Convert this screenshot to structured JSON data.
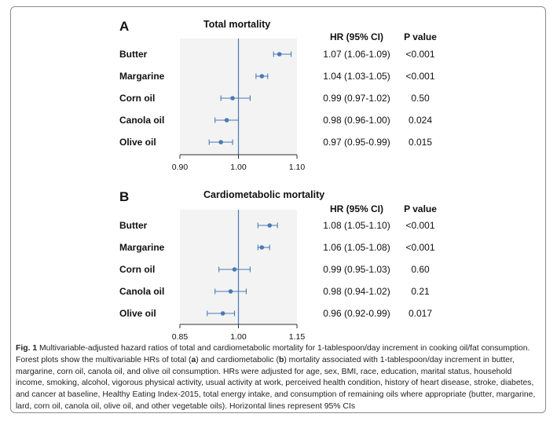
{
  "colors": {
    "point": "#4a7ab5",
    "ref_line": "#4a7ab5",
    "panel_bg": "#f3f3f3",
    "axis": "#333333"
  },
  "chart_data": [
    {
      "type": "forest",
      "panel": "A",
      "title": "Total mortality",
      "hr_header": "HR (95% CI)",
      "p_header": "P value",
      "xlim": [
        0.9,
        1.1
      ],
      "ticks": [
        "0.90",
        "1.00",
        "1.10"
      ],
      "reference": 1.0,
      "rows": [
        {
          "label": "Butter",
          "hr": 1.07,
          "lo": 1.06,
          "hi": 1.09,
          "hr_text": "1.07 (1.06-1.09)",
          "p": "<0.001"
        },
        {
          "label": "Margarine",
          "hr": 1.04,
          "lo": 1.03,
          "hi": 1.05,
          "hr_text": "1.04 (1.03-1.05)",
          "p": "<0.001"
        },
        {
          "label": "Corn oil",
          "hr": 0.99,
          "lo": 0.97,
          "hi": 1.02,
          "hr_text": "0.99 (0.97-1.02)",
          "p": "0.50"
        },
        {
          "label": "Canola oil",
          "hr": 0.98,
          "lo": 0.96,
          "hi": 1.0,
          "hr_text": "0.98 (0.96-1.00)",
          "p": "0.024"
        },
        {
          "label": "Olive oil",
          "hr": 0.97,
          "lo": 0.95,
          "hi": 0.99,
          "hr_text": "0.97 (0.95-0.99)",
          "p": "0.015"
        }
      ]
    },
    {
      "type": "forest",
      "panel": "B",
      "title": "Cardiometabolic mortality",
      "hr_header": "HR (95% CI)",
      "p_header": "P value",
      "xlim": [
        0.85,
        1.15
      ],
      "ticks": [
        "0.85",
        "1.00",
        "1.15"
      ],
      "reference": 1.0,
      "rows": [
        {
          "label": "Butter",
          "hr": 1.08,
          "lo": 1.05,
          "hi": 1.1,
          "hr_text": "1.08 (1.05-1.10)",
          "p": "<0.001"
        },
        {
          "label": "Margarine",
          "hr": 1.06,
          "lo": 1.05,
          "hi": 1.08,
          "hr_text": "1.06 (1.05-1.08)",
          "p": "<0.001"
        },
        {
          "label": "Corn oil",
          "hr": 0.99,
          "lo": 0.95,
          "hi": 1.03,
          "hr_text": "0.99 (0.95-1.03)",
          "p": "0.60"
        },
        {
          "label": "Canola oil",
          "hr": 0.98,
          "lo": 0.94,
          "hi": 1.02,
          "hr_text": "0.98 (0.94-1.02)",
          "p": "0.21"
        },
        {
          "label": "Olive oil",
          "hr": 0.96,
          "lo": 0.92,
          "hi": 0.99,
          "hr_text": "0.96 (0.92-0.99)",
          "p": "0.017"
        }
      ]
    }
  ],
  "caption": {
    "fig": "Fig. 1",
    "p1": " Multivariable-adjusted hazard ratios of total and cardiometabolic mortality for 1-tablespoon/day increment in cooking oil/fat consumption. Forest plots show the multivariable HRs of total (",
    "a": "a",
    "p2": ") and cardiometabolic (",
    "b": "b",
    "p3": ") mortality associated with 1-tablespoon/day increment in butter, margarine, corn oil, canola oil, and olive oil consumption. HRs were adjusted for age, sex, BMI, race, education, marital status, household income, smoking, alcohol, vigorous physical activity, usual activity at work, perceived health condition, history of heart disease, stroke, diabetes, and cancer at baseline, Healthy Eating Index-2015, total energy intake, and consumption of remaining oils where appropriate (butter, margarine, lard, corn oil, canola oil, olive oil, and other vegetable oils). Horizontal lines represent 95% CIs"
  }
}
